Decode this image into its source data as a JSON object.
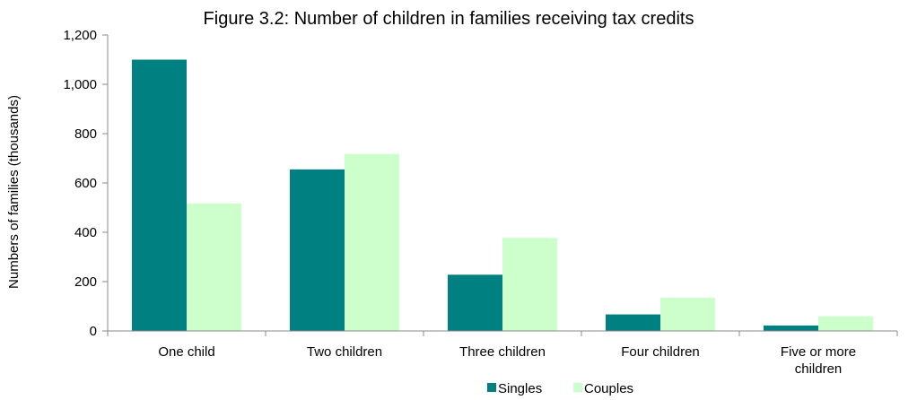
{
  "chart_data": {
    "type": "bar",
    "title": "Figure 3.2: Number of children in families receiving tax credits",
    "xlabel": "",
    "ylabel": "Numbers of families (thousands)",
    "categories": [
      [
        "One child"
      ],
      [
        "Two children"
      ],
      [
        "Three children"
      ],
      [
        "Four children"
      ],
      [
        "Five or more",
        "children"
      ]
    ],
    "series": [
      {
        "name": "Singles",
        "color": "#008080",
        "values": [
          1100,
          655,
          228,
          67,
          22
        ]
      },
      {
        "name": "Couples",
        "color": "#CCFFCC",
        "values": [
          517,
          718,
          377,
          135,
          60
        ]
      }
    ],
    "ylim": [
      0,
      1200
    ],
    "yticks": [
      0,
      200,
      400,
      600,
      800,
      1000,
      1200
    ],
    "ytick_labels": [
      "0",
      "200",
      "400",
      "600",
      "800",
      "1,000",
      "1,200"
    ],
    "grid": false,
    "legend_position": "bottom"
  }
}
